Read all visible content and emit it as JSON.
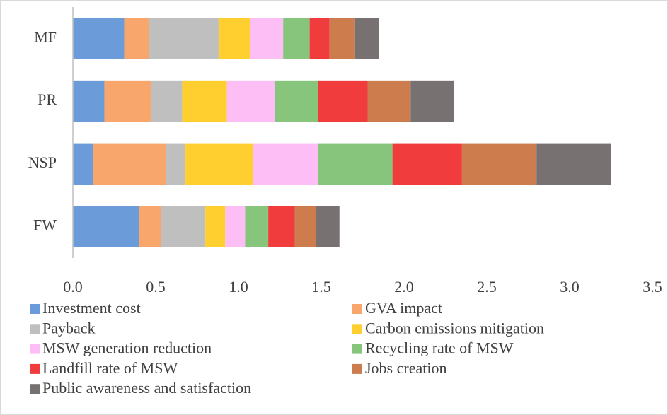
{
  "chart_data": {
    "type": "stacked_barh",
    "categories": [
      "MF",
      "PR",
      "NSP",
      "FW"
    ],
    "series": [
      {
        "name": "Investment cost",
        "color": "#6b9bd9",
        "values": [
          0.31,
          0.19,
          0.12,
          0.4
        ]
      },
      {
        "name": "GVA impact",
        "color": "#f9a66c",
        "values": [
          0.15,
          0.28,
          0.44,
          0.13
        ]
      },
      {
        "name": "Payback",
        "color": "#bfbfbf",
        "values": [
          0.42,
          0.19,
          0.12,
          0.27
        ]
      },
      {
        "name": "Carbon emissions mitigation",
        "color": "#fecf2f",
        "values": [
          0.19,
          0.27,
          0.41,
          0.12
        ]
      },
      {
        "name": "MSW generation reduction",
        "color": "#fdbdf5",
        "values": [
          0.2,
          0.29,
          0.39,
          0.12
        ]
      },
      {
        "name": "Recycling rate of MSW",
        "color": "#86c57b",
        "values": [
          0.16,
          0.26,
          0.45,
          0.14
        ]
      },
      {
        "name": "Landfill rate of MSW",
        "color": "#f03c3c",
        "values": [
          0.12,
          0.3,
          0.42,
          0.16
        ]
      },
      {
        "name": "Jobs creation",
        "color": "#cd7c4d",
        "values": [
          0.15,
          0.26,
          0.45,
          0.13
        ]
      },
      {
        "name": "Public awareness and satisfaction",
        "color": "#787171",
        "values": [
          0.15,
          0.26,
          0.45,
          0.14
        ]
      }
    ],
    "xlim": [
      0,
      3.5
    ],
    "xticks": [
      {
        "value": 0,
        "label": "0.0"
      },
      0.5,
      {
        "value": 1,
        "label": "1.0"
      },
      1.5,
      {
        "value": 2,
        "label": "2.0"
      },
      2.5,
      {
        "value": 3,
        "label": "3.0"
      },
      3.5
    ],
    "legend": "bottom"
  }
}
